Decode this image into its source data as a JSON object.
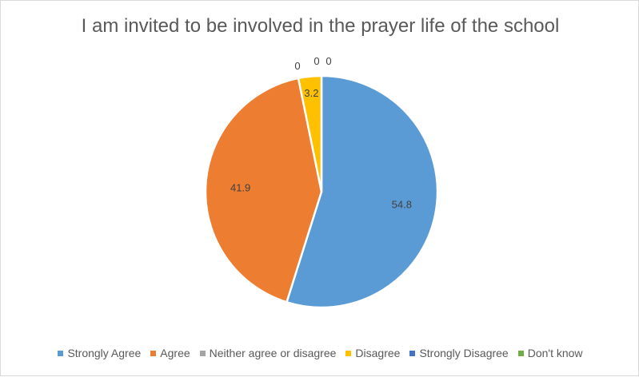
{
  "chart_data": {
    "type": "pie",
    "title": "I am invited to be involved in the prayer life of the school",
    "categories": [
      "Strongly Agree",
      "Agree",
      "Neither agree or disagree",
      "Disagree",
      "Strongly Disagree",
      "Don't know"
    ],
    "values": [
      54.8,
      41.9,
      0,
      3.2,
      0,
      0
    ],
    "data_labels": [
      "54.8",
      "41.9",
      "0",
      "3.2",
      "0",
      "0"
    ],
    "colors": [
      "#5b9bd5",
      "#ed7d31",
      "#a5a5a5",
      "#ffc000",
      "#4472c4",
      "#70ad47"
    ],
    "legend_position": "bottom",
    "start_angle_deg": 0,
    "direction": "clockwise"
  }
}
